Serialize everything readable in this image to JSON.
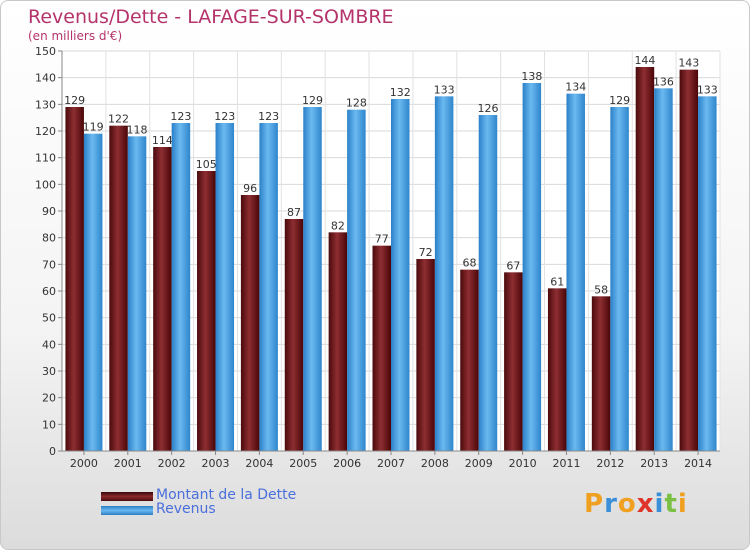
{
  "chart_data": {
    "type": "bar",
    "title": "Revenus/Dette - LAFAGE-SUR-SOMBRE",
    "subtitle": "(en milliers d'€)",
    "categories": [
      "2000",
      "2001",
      "2002",
      "2003",
      "2004",
      "2005",
      "2006",
      "2007",
      "2008",
      "2009",
      "2010",
      "2011",
      "2012",
      "2013",
      "2014"
    ],
    "series": [
      {
        "name": "Montant de la Dette",
        "color": "#7a1f22",
        "values": [
          129,
          122,
          114,
          105,
          96,
          87,
          82,
          77,
          72,
          68,
          67,
          61,
          58,
          144,
          143
        ]
      },
      {
        "name": "Revenus",
        "color": "#5aa9e6",
        "values": [
          119,
          118,
          123,
          123,
          123,
          129,
          128,
          132,
          133,
          126,
          138,
          134,
          129,
          136,
          133
        ]
      }
    ],
    "ylim": [
      0,
      150
    ],
    "yticks": [
      0,
      10,
      20,
      30,
      40,
      50,
      60,
      70,
      80,
      90,
      100,
      110,
      120,
      130,
      140,
      150
    ],
    "grid": true,
    "legend": "bottom-left"
  },
  "logo": {
    "letters": [
      {
        "ch": "P",
        "color": "#f0a020"
      },
      {
        "ch": "r",
        "color": "#3a8fd8"
      },
      {
        "ch": "o",
        "color": "#f0a020"
      },
      {
        "ch": "x",
        "color": "#e0342a"
      },
      {
        "ch": "i",
        "color": "#3a8fd8"
      },
      {
        "ch": "t",
        "color": "#7ac043"
      },
      {
        "ch": "i",
        "color": "#f0a020"
      }
    ]
  }
}
